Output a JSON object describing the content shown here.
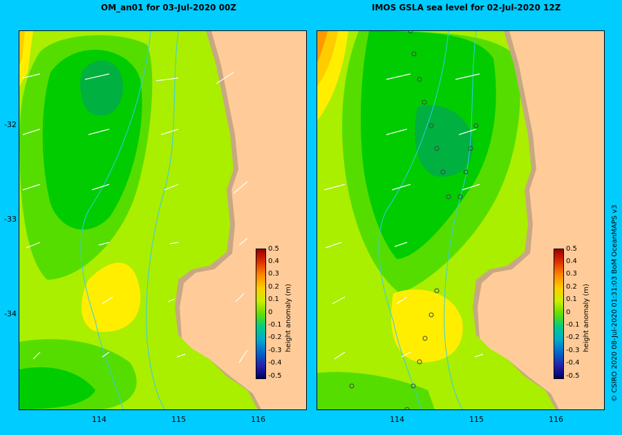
{
  "left_panel": {
    "title": "OM_an01  for 03-Jul-2020 00Z"
  },
  "right_panel": {
    "title": "IMOS  GSLA sea level   for 02-Jul-2020 12Z"
  },
  "y_axis": {
    "ticks": [
      "-32",
      "-33",
      "-34"
    ]
  },
  "x_axis": {
    "ticks": [
      "114",
      "115",
      "116"
    ]
  },
  "colorbar": {
    "label": "height anomaly  (m)",
    "ticks": [
      "0.5",
      "0.4",
      "0.3",
      "0.2",
      "0.1",
      "0",
      "-0.1",
      "-0.2",
      "-0.3",
      "-0.4",
      "-0.5"
    ]
  },
  "credit": "© CSIRO 2020   08-Jul-2020 01:31:03 BoM OceanMAPS v3",
  "colors": {
    "background": "#00ccff",
    "land": "#ffcc99",
    "shelf": "#c8a882",
    "high": "#ff8800",
    "yellow": "#ffee00",
    "lime": "#aaee00",
    "light_green": "#55dd00",
    "green": "#00cc00",
    "dark_green": "#00b040",
    "river": "#33ccee"
  }
}
